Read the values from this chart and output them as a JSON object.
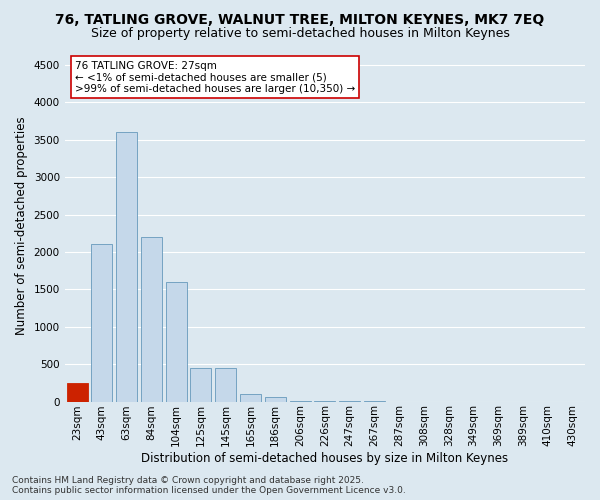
{
  "title": "76, TATLING GROVE, WALNUT TREE, MILTON KEYNES, MK7 7EQ",
  "subtitle": "Size of property relative to semi-detached houses in Milton Keynes",
  "xlabel": "Distribution of semi-detached houses by size in Milton Keynes",
  "ylabel": "Number of semi-detached properties",
  "categories": [
    "23sqm",
    "43sqm",
    "63sqm",
    "84sqm",
    "104sqm",
    "125sqm",
    "145sqm",
    "165sqm",
    "186sqm",
    "206sqm",
    "226sqm",
    "247sqm",
    "267sqm",
    "287sqm",
    "308sqm",
    "328sqm",
    "349sqm",
    "369sqm",
    "389sqm",
    "410sqm",
    "430sqm"
  ],
  "values": [
    250,
    2100,
    3600,
    2200,
    1600,
    450,
    450,
    100,
    60,
    10,
    5,
    2,
    1,
    0,
    0,
    0,
    0,
    0,
    0,
    0,
    0
  ],
  "bar_color": "#c5d8ea",
  "bar_edge_color": "#6699bb",
  "highlight_bar_index": 0,
  "highlight_bar_color": "#cc2200",
  "highlight_bar_edge_color": "#cc2200",
  "annotation_text": "76 TATLING GROVE: 27sqm\n← <1% of semi-detached houses are smaller (5)\n>99% of semi-detached houses are larger (10,350) →",
  "annotation_box_facecolor": "#ffffff",
  "annotation_box_edgecolor": "#cc0000",
  "ylim": [
    0,
    4700
  ],
  "yticks": [
    0,
    500,
    1000,
    1500,
    2000,
    2500,
    3000,
    3500,
    4000,
    4500
  ],
  "background_color": "#dce8f0",
  "grid_color": "#ffffff",
  "footer_line1": "Contains HM Land Registry data © Crown copyright and database right 2025.",
  "footer_line2": "Contains public sector information licensed under the Open Government Licence v3.0.",
  "title_fontsize": 10,
  "subtitle_fontsize": 9,
  "annotation_fontsize": 7.5,
  "axis_label_fontsize": 8.5,
  "tick_fontsize": 7.5,
  "footer_fontsize": 6.5
}
